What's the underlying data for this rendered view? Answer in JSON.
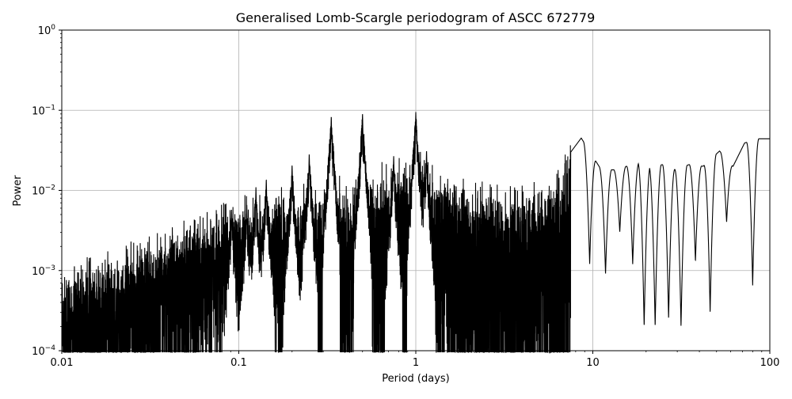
{
  "chart_data": {
    "type": "line",
    "title": "Generalised Lomb-Scargle periodogram of ASCC 672779",
    "xlabel": "Period (days)",
    "ylabel": "Power",
    "xscale": "log",
    "yscale": "log",
    "xlim": [
      0.01,
      100
    ],
    "ylim": [
      0.0001,
      1
    ],
    "grid": true,
    "line_color": "#000000",
    "grid_color": "#b0b0b0",
    "x_ticks": [
      {
        "value": 0.01,
        "label": "0.01"
      },
      {
        "value": 0.1,
        "label": "0.1"
      },
      {
        "value": 1,
        "label": "1"
      },
      {
        "value": 10,
        "label": "10"
      },
      {
        "value": 100,
        "label": "100"
      }
    ],
    "y_ticks": [
      {
        "value": 0.0001,
        "mantissa": "10",
        "exponent": "−4"
      },
      {
        "value": 0.001,
        "mantissa": "10",
        "exponent": "−3"
      },
      {
        "value": 0.01,
        "mantissa": "10",
        "exponent": "−2"
      },
      {
        "value": 0.1,
        "mantissa": "10",
        "exponent": "−1"
      },
      {
        "value": 1,
        "mantissa": "10",
        "exponent": "0"
      }
    ],
    "peaks": [
      {
        "period": 0.5,
        "power": 0.092
      },
      {
        "period": 0.333,
        "power": 0.085
      },
      {
        "period": 1.0,
        "power": 0.095
      },
      {
        "period": 0.25,
        "power": 0.029
      },
      {
        "period": 0.2,
        "power": 0.021
      },
      {
        "period": 0.143,
        "power": 0.014
      },
      {
        "period": 0.125,
        "power": 0.011
      },
      {
        "period": 0.111,
        "power": 0.0066
      },
      {
        "period": 0.091,
        "power": 0.0058
      },
      {
        "period": 8.6,
        "power": 0.045
      },
      {
        "period": 0.75,
        "power": 0.027
      },
      {
        "period": 1.15,
        "power": 0.032
      }
    ],
    "long_period_envelope": {
      "x": [
        7.5,
        8.6,
        11,
        13,
        15.5,
        18,
        21,
        25,
        29.5,
        35,
        42,
        52,
        62,
        72,
        85,
        100
      ],
      "y": [
        0.03,
        0.045,
        0.019,
        0.018,
        0.02,
        0.022,
        0.02,
        0.021,
        0.018,
        0.021,
        0.02,
        0.031,
        0.02,
        0.039,
        0.044,
        0.044
      ]
    },
    "long_period_minima": {
      "x": [
        9.6,
        11.8,
        14.2,
        16.8,
        19.5,
        22.5,
        26.8,
        31.5,
        38,
        46,
        57,
        80
      ],
      "y": [
        0.0012,
        0.0009,
        0.003,
        0.0012,
        0.0002,
        0.0002,
        0.00025,
        0.0002,
        0.0013,
        0.0003,
        0.004,
        0.00065
      ]
    }
  }
}
